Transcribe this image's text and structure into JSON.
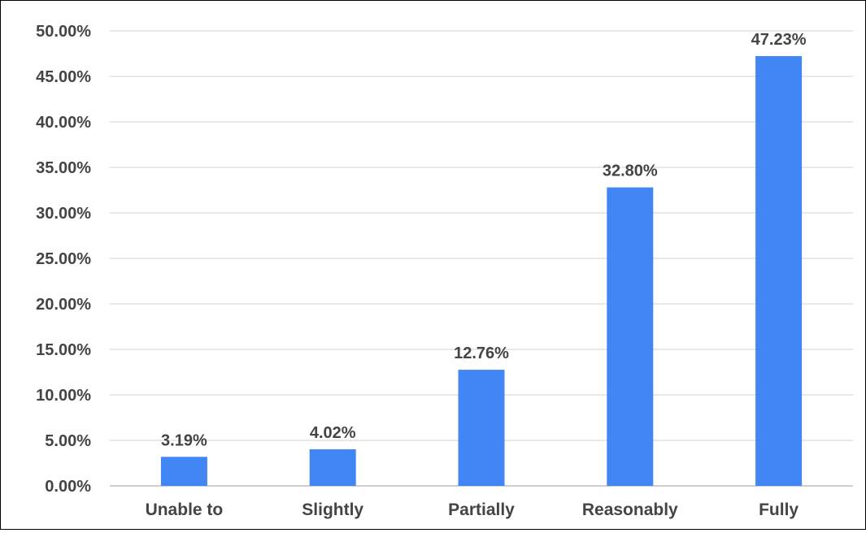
{
  "chart_data": {
    "type": "bar",
    "title": "",
    "xlabel": "",
    "ylabel": "",
    "categories": [
      "Unable to",
      "Slightly",
      "Partially",
      "Reasonably",
      "Fully"
    ],
    "values": [
      3.19,
      4.02,
      12.76,
      32.8,
      47.23
    ],
    "value_labels": [
      "3.19%",
      "4.02%",
      "12.76%",
      "32.80%",
      "47.23%"
    ],
    "ylim": [
      0,
      50
    ],
    "yticks": [
      0,
      5,
      10,
      15,
      20,
      25,
      30,
      35,
      40,
      45,
      50
    ],
    "ytick_labels": [
      "0.00%",
      "5.00%",
      "10.00%",
      "15.00%",
      "20.00%",
      "25.00%",
      "30.00%",
      "35.00%",
      "40.00%",
      "45.00%",
      "50.00%"
    ],
    "grid": true,
    "legend": "none",
    "bar_color": "#4285f4",
    "grid_color": "#d0d0d0",
    "text_color": "#444444"
  }
}
